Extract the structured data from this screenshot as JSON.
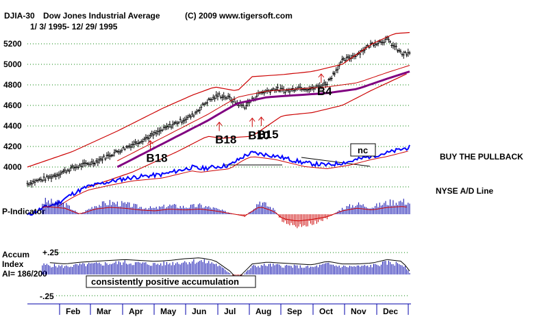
{
  "header": {
    "symbol": "DJIA-30",
    "name": "Dow Jones Industrial Average",
    "copyright": "(C) 2009 www.tigersoft.com",
    "date_range": "1/ 3/ 1995- 12/ 29/ 1995"
  },
  "colors": {
    "price_bars": "#000000",
    "bands": "#cc0000",
    "moving_average": "#800080",
    "ad_line": "#0000ff",
    "indicator_positive": "#0000aa",
    "indicator_negative": "#cc0000",
    "grid": "#008000",
    "signal_arrows": "#cc0000"
  },
  "chart_data": [
    {
      "type": "line",
      "title": "DJIA-30 Dow Jones Industrial Average",
      "y_ticks": [
        4000,
        4200,
        4400,
        4600,
        4800,
        5000,
        5200
      ],
      "ylim": [
        3800,
        5320
      ],
      "grid": true,
      "x_months": [
        "Feb",
        "Mar",
        "Apr",
        "May",
        "Jun",
        "Jul",
        "Aug",
        "Sep",
        "Oct",
        "Nov",
        "Dec"
      ],
      "series": [
        {
          "key": "price",
          "x": [
            0,
            15,
            30,
            45,
            60,
            70,
            85,
            95,
            110,
            120,
            128,
            135,
            140,
            145,
            155,
            165,
            175,
            180,
            190,
            200,
            210,
            220,
            230,
            240,
            250,
            255
          ],
          "y": [
            3840,
            3900,
            3990,
            4050,
            4150,
            4220,
            4320,
            4400,
            4500,
            4640,
            4700,
            4670,
            4620,
            4590,
            4720,
            4760,
            4740,
            4780,
            4760,
            4820,
            5030,
            5100,
            5200,
            5240,
            5100,
            5100
          ]
        },
        {
          "key": "moving_average",
          "x": [
            60,
            80,
            100,
            120,
            140,
            160,
            180,
            200,
            220,
            240,
            255
          ],
          "y": [
            4000,
            4150,
            4300,
            4450,
            4620,
            4680,
            4700,
            4720,
            4760,
            4860,
            4930
          ]
        },
        {
          "key": "upper_band",
          "x": [
            0,
            30,
            60,
            90,
            110,
            125,
            140,
            150,
            170,
            190,
            210,
            230,
            245,
            255
          ],
          "y": [
            4000,
            4150,
            4350,
            4570,
            4700,
            4780,
            4740,
            4880,
            4900,
            4930,
            5000,
            5200,
            5300,
            5310
          ]
        },
        {
          "key": "lower_band",
          "x": [
            40,
            70,
            100,
            120,
            130,
            150,
            170,
            190,
            210,
            230,
            255
          ],
          "y": [
            3800,
            3950,
            4150,
            4300,
            4280,
            4300,
            4500,
            4530,
            4600,
            4750,
            4920
          ]
        }
      ],
      "signals": [
        {
          "label": "B18",
          "x": 82,
          "y": 4170
        },
        {
          "label": "B18",
          "x": 128,
          "y": 4350
        },
        {
          "label": "B10",
          "x": 150,
          "y": 4390
        },
        {
          "label": "B15",
          "x": 156,
          "y": 4400
        },
        {
          "label": "B4",
          "x": 196,
          "y": 4820
        }
      ],
      "annotations": [
        "BUY THE PULLBACK"
      ]
    },
    {
      "type": "line",
      "title": "NYSE A/D Line",
      "annotations": [
        "nc"
      ],
      "series": [
        {
          "key": "ad_line",
          "x": [
            0,
            10,
            20,
            30,
            40,
            55,
            70,
            90,
            110,
            115,
            135,
            145,
            150,
            165,
            175,
            185,
            200,
            215,
            230,
            240,
            255
          ],
          "y": [
            0.05,
            0.15,
            0.22,
            0.35,
            0.45,
            0.52,
            0.58,
            0.62,
            0.72,
            0.7,
            0.75,
            0.88,
            0.92,
            0.88,
            0.83,
            0.78,
            0.75,
            0.8,
            0.88,
            0.92,
            1.0
          ]
        }
      ]
    },
    {
      "type": "bar",
      "title": "P-Indicator",
      "x": [
        0,
        12,
        25,
        35,
        45,
        55,
        65,
        75,
        85,
        95,
        105,
        115,
        125,
        135,
        145,
        155,
        165,
        170,
        180,
        190,
        200,
        210,
        220,
        230,
        240,
        250,
        255
      ],
      "values": [
        0.3,
        0.9,
        0.7,
        0.0,
        0.6,
        0.8,
        0.7,
        0.5,
        0.4,
        0.6,
        0.5,
        0.6,
        0.4,
        0.1,
        -0.2,
        0.9,
        0.3,
        -0.5,
        -0.8,
        -0.6,
        -0.3,
        0.4,
        0.7,
        0.5,
        0.8,
        0.9,
        0.8
      ],
      "ylim": [
        -1,
        1
      ]
    },
    {
      "type": "bar",
      "title": "Accum Index",
      "y_ticks": [
        0.25,
        -0.25
      ],
      "y_tick_labels": [
        "+.25",
        "-.25"
      ],
      "ylim": [
        -0.3,
        0.3
      ],
      "x": [
        0,
        12,
        25,
        35,
        45,
        55,
        65,
        75,
        85,
        95,
        105,
        115,
        125,
        135,
        140,
        150,
        160,
        170,
        180,
        190,
        200,
        210,
        220,
        230,
        240,
        250,
        255
      ],
      "values": [
        0.12,
        0.12,
        0.1,
        0.12,
        0.13,
        0.14,
        0.15,
        0.14,
        0.13,
        0.14,
        0.16,
        0.17,
        0.14,
        0.02,
        -0.07,
        0.1,
        0.12,
        0.11,
        0.1,
        0.09,
        0.13,
        0.1,
        0.1,
        0.11,
        0.15,
        0.13,
        0.02
      ],
      "ai_label": "AI= 186/200",
      "annotation": "consistently positive accumulation"
    }
  ],
  "labels": {
    "buy_pullback": "BUY THE PULLBACK",
    "nyse_ad": "NYSE A/D Line",
    "p_indicator": "P-Indicator",
    "accum_line1": "Accum",
    "accum_line2": "Index",
    "accum_ai": "AI= 186/200",
    "accum_plus": "+.25",
    "accum_minus": "-.25",
    "nc": "nc",
    "accum_note": "consistently positive accumulation"
  }
}
